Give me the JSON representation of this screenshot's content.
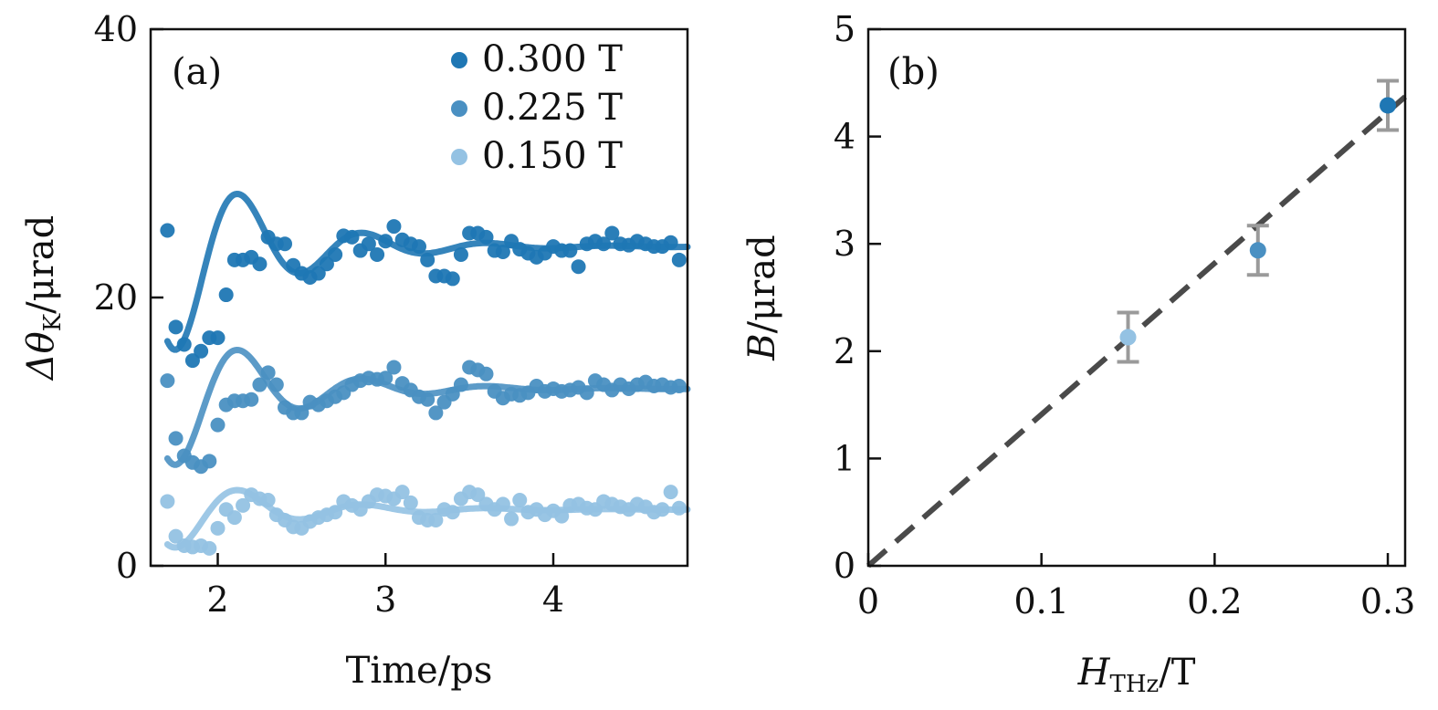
{
  "colors": {
    "dark": "#1f77b4",
    "medium": "#4a90c2",
    "light": "#94c2e3",
    "fit_line": "#4a4a4a",
    "error_bar": "#9a9a9a"
  },
  "chart_data": [
    {
      "type": "scatter",
      "panel_label": "(a)",
      "xlabel": "Time/ps",
      "ylabel_text": {
        "prefix": "Δθ",
        "sub": "K",
        "suffix": "/μrad"
      },
      "xlim": [
        1.6,
        4.8
      ],
      "ylim": [
        0,
        40
      ],
      "xticks": [
        2,
        3,
        4
      ],
      "yticks": [
        0,
        20,
        40
      ],
      "legend_position": "top-right",
      "series": [
        {
          "name": "0.300 T",
          "color_key": "dark",
          "x": [
            1.7,
            1.75,
            1.8,
            1.85,
            1.9,
            1.95,
            2.0,
            2.05,
            2.1,
            2.15,
            2.2,
            2.25,
            2.3,
            2.35,
            2.4,
            2.45,
            2.5,
            2.55,
            2.6,
            2.65,
            2.7,
            2.75,
            2.8,
            2.85,
            2.9,
            2.95,
            3.0,
            3.05,
            3.1,
            3.15,
            3.2,
            3.25,
            3.3,
            3.35,
            3.4,
            3.45,
            3.5,
            3.55,
            3.6,
            3.65,
            3.7,
            3.75,
            3.8,
            3.85,
            3.9,
            3.95,
            4.0,
            4.05,
            4.1,
            4.15,
            4.2,
            4.25,
            4.3,
            4.35,
            4.4,
            4.45,
            4.5,
            4.55,
            4.6,
            4.65,
            4.7,
            4.75
          ],
          "y": [
            25.0,
            17.8,
            16.5,
            15.3,
            16.0,
            17.0,
            17.0,
            20.2,
            22.8,
            22.8,
            23.0,
            22.5,
            24.5,
            24.0,
            24.0,
            22.4,
            21.8,
            21.5,
            21.8,
            22.5,
            23.2,
            24.6,
            24.5,
            23.5,
            24.0,
            23.2,
            24.2,
            25.3,
            24.3,
            24.0,
            23.8,
            22.8,
            21.6,
            21.6,
            21.4,
            23.2,
            24.8,
            24.8,
            24.5,
            23.5,
            23.4,
            24.2,
            23.6,
            23.3,
            23.0,
            23.3,
            23.8,
            23.5,
            23.5,
            22.3,
            24.0,
            24.2,
            24.0,
            24.8,
            24.0,
            23.9,
            24.2,
            24.0,
            23.8,
            23.8,
            24.1,
            22.8
          ],
          "fit_baseline": 23.8,
          "fit_amplitude": 9.5,
          "fit_freq_hz_ps": 1.35,
          "fit_decay_ps": 0.55,
          "fit_phase": 0.6
        },
        {
          "name": "0.225 T",
          "color_key": "medium",
          "x": [
            1.7,
            1.75,
            1.8,
            1.85,
            1.9,
            1.95,
            2.0,
            2.05,
            2.1,
            2.15,
            2.2,
            2.25,
            2.3,
            2.35,
            2.4,
            2.45,
            2.5,
            2.55,
            2.6,
            2.65,
            2.7,
            2.75,
            2.8,
            2.85,
            2.9,
            2.95,
            3.0,
            3.05,
            3.1,
            3.15,
            3.2,
            3.25,
            3.3,
            3.35,
            3.4,
            3.45,
            3.5,
            3.55,
            3.6,
            3.65,
            3.7,
            3.75,
            3.8,
            3.85,
            3.9,
            3.95,
            4.0,
            4.05,
            4.1,
            4.15,
            4.2,
            4.25,
            4.3,
            4.35,
            4.4,
            4.45,
            4.5,
            4.55,
            4.6,
            4.65,
            4.7,
            4.75
          ],
          "y": [
            13.8,
            9.5,
            8.2,
            7.7,
            7.4,
            7.8,
            10.5,
            12.0,
            12.3,
            12.3,
            12.4,
            13.5,
            14.4,
            13.5,
            11.8,
            11.4,
            11.4,
            12.2,
            12.0,
            12.3,
            12.6,
            12.9,
            13.5,
            13.8,
            14.0,
            13.9,
            14.0,
            14.8,
            13.6,
            13.1,
            12.6,
            12.4,
            11.4,
            12.2,
            12.8,
            13.5,
            14.8,
            14.6,
            14.3,
            13.0,
            12.5,
            12.8,
            12.7,
            12.9,
            13.4,
            13.0,
            13.2,
            13.0,
            13.1,
            13.3,
            12.9,
            13.8,
            13.5,
            13.1,
            13.5,
            13.2,
            13.5,
            13.7,
            13.4,
            13.5,
            13.3,
            13.4
          ],
          "fit_baseline": 13.2,
          "fit_amplitude": 7.0,
          "fit_freq_hz_ps": 1.35,
          "fit_decay_ps": 0.55,
          "fit_phase": 0.6
        },
        {
          "name": "0.150 T",
          "color_key": "light",
          "x": [
            1.7,
            1.75,
            1.8,
            1.85,
            1.9,
            1.95,
            2.0,
            2.05,
            2.1,
            2.15,
            2.2,
            2.25,
            2.3,
            2.35,
            2.4,
            2.45,
            2.5,
            2.55,
            2.6,
            2.65,
            2.7,
            2.75,
            2.8,
            2.85,
            2.9,
            2.95,
            3.0,
            3.05,
            3.1,
            3.15,
            3.2,
            3.25,
            3.3,
            3.35,
            3.4,
            3.45,
            3.5,
            3.55,
            3.6,
            3.65,
            3.7,
            3.75,
            3.8,
            3.85,
            3.9,
            3.95,
            4.0,
            4.05,
            4.1,
            4.15,
            4.2,
            4.25,
            4.3,
            4.35,
            4.4,
            4.45,
            4.5,
            4.55,
            4.6,
            4.65,
            4.7,
            4.75
          ],
          "y": [
            4.8,
            2.2,
            1.5,
            1.4,
            1.5,
            1.3,
            2.8,
            4.2,
            3.6,
            4.5,
            5.3,
            5.0,
            4.9,
            3.8,
            3.4,
            2.9,
            2.8,
            3.3,
            3.6,
            3.8,
            4.0,
            4.8,
            4.5,
            4.2,
            4.8,
            5.3,
            5.2,
            5.0,
            5.5,
            4.7,
            3.6,
            3.4,
            3.4,
            4.2,
            4.0,
            5.0,
            5.5,
            5.3,
            4.6,
            4.2,
            4.6,
            3.5,
            4.9,
            4.0,
            4.2,
            3.8,
            4.1,
            3.7,
            4.5,
            4.6,
            4.3,
            4.2,
            4.8,
            4.6,
            4.4,
            4.2,
            4.6,
            4.4,
            4.0,
            4.2,
            5.5,
            4.3
          ],
          "fit_baseline": 4.2,
          "fit_amplitude": 3.5,
          "fit_freq_hz_ps": 1.35,
          "fit_decay_ps": 0.55,
          "fit_phase": 0.6
        }
      ]
    },
    {
      "type": "scatter",
      "panel_label": "(b)",
      "xlabel_text": {
        "prefix": "H",
        "sub": "THz",
        "suffix": "/T"
      },
      "ylabel_text": {
        "prefix": "B",
        "suffix": "/μrad"
      },
      "xlim": [
        0,
        0.31
      ],
      "ylim": [
        0,
        5
      ],
      "xticks": [
        0,
        0.1,
        0.2,
        0.3
      ],
      "xtick_labels": [
        "0",
        "0.1",
        "0.2",
        "0.3"
      ],
      "yticks": [
        0,
        1,
        2,
        3,
        4,
        5
      ],
      "points": [
        {
          "x": 0.15,
          "y": 2.13,
          "err": 0.23,
          "color_key": "light"
        },
        {
          "x": 0.225,
          "y": 2.94,
          "err": 0.23,
          "color_key": "medium"
        },
        {
          "x": 0.3,
          "y": 4.29,
          "err": 0.23,
          "color_key": "dark"
        }
      ],
      "fit_line": {
        "slope": 14.1,
        "intercept": 0,
        "style": "dashed"
      }
    }
  ]
}
